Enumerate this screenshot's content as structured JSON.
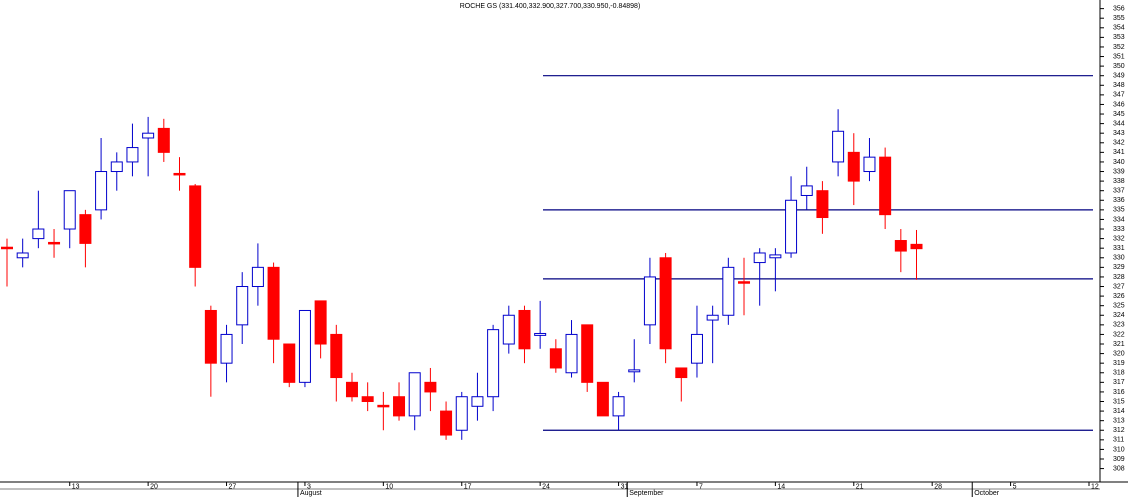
{
  "chart_data": {
    "type": "candlestick",
    "title": "ROCHE GS (331.400,332.900,327.700,330.950,-0.84898)",
    "categories": [
      null,
      null,
      null,
      null,
      "13",
      null,
      null,
      null,
      null,
      "20",
      null,
      null,
      null,
      null,
      "27",
      null,
      null,
      null,
      null,
      "3",
      null,
      null,
      null,
      null,
      "10",
      null,
      null,
      null,
      null,
      "17",
      null,
      null,
      null,
      null,
      "24",
      null,
      null,
      null,
      null,
      "31",
      null,
      null,
      null,
      null,
      "7",
      null,
      null,
      null,
      null,
      "14",
      null,
      null,
      null,
      null,
      "21",
      null,
      null,
      null,
      null,
      "28",
      null,
      null,
      null,
      null,
      "5",
      null,
      null,
      null,
      null,
      "12"
    ],
    "month_categories": [
      null,
      null,
      null,
      null,
      null,
      null,
      null,
      null,
      null,
      null,
      null,
      null,
      null,
      null,
      null,
      null,
      null,
      null,
      null,
      "August",
      null,
      null,
      null,
      null,
      null,
      null,
      null,
      null,
      null,
      null,
      null,
      null,
      null,
      null,
      null,
      null,
      null,
      null,
      null,
      null,
      "September",
      null,
      null,
      null,
      null,
      null,
      null,
      null,
      null,
      null,
      null,
      null,
      null,
      null,
      null,
      null,
      null,
      null,
      null,
      null,
      null,
      null,
      "October",
      null,
      null,
      null,
      null,
      null,
      null,
      null
    ],
    "open": [
      331.1,
      330,
      332,
      331.6,
      333,
      334.5,
      335,
      339,
      340,
      342.5,
      343.5,
      338.8,
      337.5,
      324.5,
      319,
      323,
      327,
      329,
      321,
      317,
      325.5,
      322,
      317,
      315.5,
      314.6,
      315.5,
      313.5,
      317,
      314,
      312,
      314.5,
      315.5,
      321,
      324.5,
      321.9,
      320.5,
      318,
      323,
      317,
      313.5,
      318.1,
      323,
      330,
      318.5,
      319,
      323.5,
      324,
      327.5,
      329.5,
      330,
      330.5,
      336.5,
      337,
      340,
      341,
      339,
      340.5,
      331.8,
      331.4,
      null,
      null,
      null,
      null,
      null,
      null,
      null,
      null,
      null,
      null,
      null
    ],
    "high": [
      332,
      332,
      337,
      333,
      337,
      335,
      342.5,
      341,
      344,
      344.7,
      344.5,
      340.5,
      337.7,
      325,
      323,
      328.5,
      331.5,
      329.5,
      321,
      324.5,
      325.5,
      323,
      318,
      317,
      316,
      317,
      318,
      318.5,
      315,
      316,
      318,
      323,
      325,
      325,
      325.5,
      321.5,
      323.5,
      323,
      317,
      316,
      321.5,
      330,
      330.5,
      318.5,
      325,
      325,
      330,
      330,
      331,
      331,
      338.5,
      339.5,
      338,
      345.5,
      343,
      342.5,
      341.5,
      333,
      332.9,
      null,
      null,
      null,
      null,
      null,
      null,
      null,
      null,
      null,
      null,
      null
    ],
    "low": [
      327,
      329,
      331,
      330,
      331,
      329,
      334,
      337,
      338.5,
      338.5,
      340,
      337,
      327,
      315.5,
      317,
      321,
      325,
      319,
      316.5,
      316.5,
      319.5,
      315,
      315,
      314,
      312,
      313,
      312,
      314,
      311,
      311,
      313,
      314,
      320,
      319,
      320.5,
      318,
      317.5,
      316,
      313.5,
      312,
      317,
      321,
      319,
      315,
      317.5,
      319,
      323,
      324,
      325,
      326.5,
      330,
      335,
      332.5,
      338.5,
      335.5,
      338,
      333,
      328.5,
      327.7,
      null,
      null,
      null,
      null,
      null,
      null,
      null,
      null,
      null,
      null,
      null
    ],
    "close": [
      331,
      330.5,
      333,
      331.5,
      337,
      331.5,
      339,
      340,
      341.5,
      343,
      341,
      338.7,
      329,
      319,
      322,
      327,
      329,
      321.5,
      317,
      324.5,
      321,
      317.5,
      315.5,
      315,
      314.5,
      313.5,
      318,
      316,
      311.5,
      315.5,
      315.5,
      322.5,
      324,
      320.5,
      322.1,
      318.5,
      322,
      317,
      313.5,
      315.5,
      318.3,
      328,
      320.5,
      317.5,
      322,
      324,
      329,
      327.4,
      330.5,
      330.3,
      336,
      337.5,
      334.2,
      343.2,
      338,
      340.5,
      334.5,
      330.7,
      330.95,
      null,
      null,
      null,
      null,
      null,
      null,
      null,
      null,
      null,
      null,
      null
    ],
    "up_color": "#0000cc",
    "down_color": "#ff0000",
    "hlines": [
      349,
      335,
      327.8,
      312
    ],
    "hline_color": "#000080",
    "ylim": [
      306.6,
      356.9
    ],
    "yticks": [
      308,
      309,
      310,
      311,
      312,
      313,
      314,
      315,
      316,
      317,
      318,
      319,
      320,
      321,
      322,
      323,
      324,
      325,
      326,
      327,
      328,
      329,
      330,
      331,
      332,
      333,
      334,
      335,
      336,
      337,
      338,
      339,
      340,
      341,
      342,
      343,
      344,
      345,
      346,
      347,
      348,
      349,
      350,
      351,
      352,
      353,
      354,
      355,
      356
    ]
  }
}
